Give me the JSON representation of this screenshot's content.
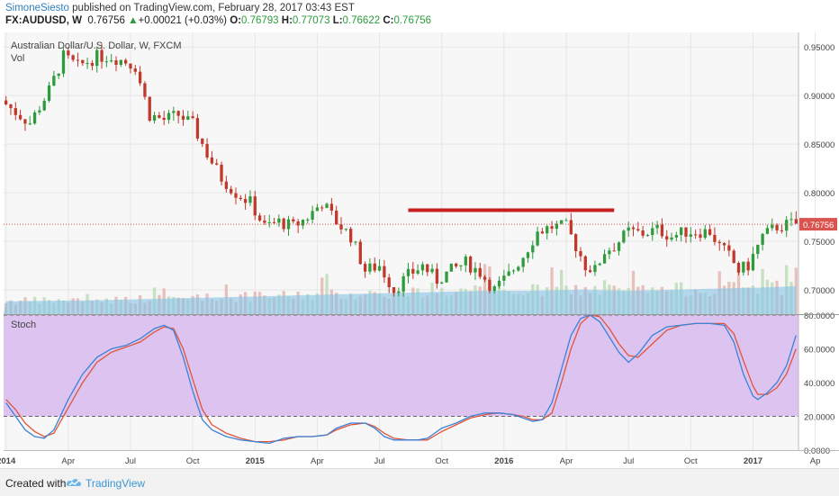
{
  "header": {
    "author": "SimoneSiesto",
    "published": " published on TradingView.com, February 28, 2017 03:43 EST",
    "symbol": "FX:AUDUSD, W",
    "last": "0.76756",
    "change_arrow": "▲",
    "change": "+0.00021 (+0.03%)",
    "o_label": "O:",
    "o_value": "0.76793",
    "h_label": "H:",
    "h_value": "0.77073",
    "l_label": "L:",
    "l_value": "0.76622",
    "c_label": "C:",
    "c_value": "0.76756"
  },
  "footer": {
    "created": "Created with",
    "brand": "TradingView"
  },
  "colors": {
    "up": "#2e9b3c",
    "down": "#c0392b",
    "resistance": "#c71f1f",
    "stoch_k": "#3b82d8",
    "stoch_d": "#e0553a",
    "stoch_bg": "#dcc3f0",
    "vol_up": "#b9d9b4",
    "vol_down": "#e2b3ad",
    "vol_ma": "#86c3e6"
  },
  "chart_data": {
    "type": "candlestick",
    "title": "Australian Dollar/U.S. Dollar, W, FXCM",
    "vol_label": "Vol",
    "stoch_label": "Stoch",
    "ylim": [
      0.675,
      0.965
    ],
    "y_ticks": [
      0.7,
      0.75,
      0.8,
      0.85,
      0.9,
      0.95
    ],
    "y_tick_labels": [
      "0.70000",
      "0.75000",
      "0.80000",
      "0.85000",
      "0.90000",
      "0.95000"
    ],
    "stoch_ylim": [
      0,
      80
    ],
    "stoch_ticks": [
      0,
      20,
      40,
      60,
      80
    ],
    "stoch_tick_labels": [
      "0.0000",
      "20.0000",
      "40.0000",
      "60.0000",
      "80.0000"
    ],
    "stoch_bands": [
      20,
      80
    ],
    "x_labels": [
      "2014",
      "Apr",
      "Jul",
      "Oct",
      "2015",
      "Apr",
      "Jul",
      "Oct",
      "2016",
      "Apr",
      "Jul",
      "Oct",
      "2017",
      "Ap"
    ],
    "x_label_weeks": [
      0,
      13,
      26,
      39,
      52,
      65,
      78,
      91,
      104,
      117,
      130,
      143,
      156,
      169
    ],
    "current_price": 0.76756,
    "current_price_label": "0.76756",
    "resistance_level": 0.782,
    "resistance_weeks": [
      84,
      127
    ],
    "price_path": [
      [
        0,
        0.895
      ],
      [
        3,
        0.883
      ],
      [
        6,
        0.872
      ],
      [
        10,
        0.905
      ],
      [
        13,
        0.94
      ],
      [
        16,
        0.93
      ],
      [
        20,
        0.94
      ],
      [
        23,
        0.94
      ],
      [
        26,
        0.935
      ],
      [
        28,
        0.93
      ],
      [
        31,
        0.88
      ],
      [
        34,
        0.875
      ],
      [
        37,
        0.88
      ],
      [
        40,
        0.87
      ],
      [
        43,
        0.84
      ],
      [
        46,
        0.815
      ],
      [
        49,
        0.8
      ],
      [
        52,
        0.79
      ],
      [
        55,
        0.765
      ],
      [
        58,
        0.77
      ],
      [
        61,
        0.765
      ],
      [
        64,
        0.775
      ],
      [
        67,
        0.79
      ],
      [
        70,
        0.77
      ],
      [
        73,
        0.755
      ],
      [
        76,
        0.72
      ],
      [
        79,
        0.725
      ],
      [
        82,
        0.7
      ],
      [
        85,
        0.715
      ],
      [
        88,
        0.725
      ],
      [
        91,
        0.71
      ],
      [
        94,
        0.72
      ],
      [
        97,
        0.728
      ],
      [
        100,
        0.718
      ],
      [
        103,
        0.7
      ],
      [
        106,
        0.715
      ],
      [
        109,
        0.735
      ],
      [
        112,
        0.76
      ],
      [
        115,
        0.765
      ],
      [
        118,
        0.765
      ],
      [
        120,
        0.745
      ],
      [
        122,
        0.725
      ],
      [
        124,
        0.72
      ],
      [
        126,
        0.74
      ],
      [
        128,
        0.745
      ],
      [
        131,
        0.76
      ],
      [
        134,
        0.758
      ],
      [
        137,
        0.762
      ],
      [
        140,
        0.755
      ],
      [
        143,
        0.76
      ],
      [
        146,
        0.76
      ],
      [
        148,
        0.76
      ],
      [
        150,
        0.745
      ],
      [
        152,
        0.735
      ],
      [
        154,
        0.72
      ],
      [
        156,
        0.725
      ],
      [
        159,
        0.755
      ],
      [
        162,
        0.765
      ],
      [
        165,
        0.768
      ]
    ],
    "volume_path": [
      [
        0,
        0.55
      ],
      [
        20,
        0.6
      ],
      [
        40,
        0.7
      ],
      [
        52,
        0.75
      ],
      [
        60,
        0.8
      ],
      [
        70,
        0.85
      ],
      [
        80,
        0.9
      ],
      [
        90,
        0.95
      ],
      [
        100,
        1.0
      ],
      [
        110,
        1.0
      ],
      [
        120,
        1.05
      ],
      [
        130,
        1.0
      ],
      [
        140,
        1.05
      ],
      [
        150,
        1.1
      ],
      [
        160,
        1.15
      ],
      [
        165,
        1.2
      ]
    ],
    "stoch_k_path": [
      [
        0,
        28
      ],
      [
        2,
        20
      ],
      [
        4,
        12
      ],
      [
        6,
        8
      ],
      [
        8,
        7
      ],
      [
        10,
        12
      ],
      [
        13,
        30
      ],
      [
        16,
        45
      ],
      [
        19,
        55
      ],
      [
        22,
        60
      ],
      [
        25,
        62
      ],
      [
        28,
        66
      ],
      [
        31,
        72
      ],
      [
        33,
        74
      ],
      [
        35,
        71
      ],
      [
        37,
        55
      ],
      [
        39,
        35
      ],
      [
        41,
        18
      ],
      [
        43,
        12
      ],
      [
        46,
        8
      ],
      [
        49,
        6
      ],
      [
        52,
        5
      ],
      [
        55,
        4
      ],
      [
        58,
        7
      ],
      [
        61,
        8
      ],
      [
        64,
        8
      ],
      [
        67,
        9
      ],
      [
        69,
        13
      ],
      [
        72,
        16
      ],
      [
        75,
        16
      ],
      [
        77,
        13
      ],
      [
        79,
        8
      ],
      [
        81,
        6
      ],
      [
        84,
        6
      ],
      [
        86,
        6
      ],
      [
        88,
        7
      ],
      [
        91,
        13
      ],
      [
        94,
        16
      ],
      [
        97,
        20
      ],
      [
        100,
        22
      ],
      [
        103,
        22
      ],
      [
        106,
        21
      ],
      [
        108,
        19
      ],
      [
        110,
        17
      ],
      [
        112,
        18
      ],
      [
        114,
        28
      ],
      [
        116,
        48
      ],
      [
        118,
        68
      ],
      [
        120,
        78
      ],
      [
        122,
        80
      ],
      [
        124,
        76
      ],
      [
        126,
        67
      ],
      [
        128,
        58
      ],
      [
        130,
        52
      ],
      [
        132,
        57
      ],
      [
        135,
        68
      ],
      [
        138,
        73
      ],
      [
        141,
        74
      ],
      [
        144,
        75
      ],
      [
        147,
        75
      ],
      [
        150,
        74
      ],
      [
        152,
        64
      ],
      [
        154,
        45
      ],
      [
        156,
        32
      ],
      [
        157,
        30
      ],
      [
        159,
        34
      ],
      [
        161,
        40
      ],
      [
        163,
        50
      ],
      [
        165,
        68
      ]
    ],
    "stoch_d_path": [
      [
        0,
        30
      ],
      [
        2,
        24
      ],
      [
        4,
        16
      ],
      [
        6,
        11
      ],
      [
        8,
        8
      ],
      [
        10,
        10
      ],
      [
        13,
        25
      ],
      [
        16,
        40
      ],
      [
        19,
        52
      ],
      [
        22,
        58
      ],
      [
        25,
        61
      ],
      [
        28,
        64
      ],
      [
        31,
        70
      ],
      [
        33,
        73
      ],
      [
        35,
        72
      ],
      [
        37,
        60
      ],
      [
        39,
        42
      ],
      [
        41,
        24
      ],
      [
        43,
        15
      ],
      [
        46,
        10
      ],
      [
        49,
        7
      ],
      [
        52,
        5
      ],
      [
        55,
        5
      ],
      [
        58,
        6
      ],
      [
        61,
        8
      ],
      [
        64,
        8
      ],
      [
        67,
        9
      ],
      [
        69,
        12
      ],
      [
        72,
        15
      ],
      [
        75,
        16
      ],
      [
        77,
        14
      ],
      [
        79,
        10
      ],
      [
        81,
        7
      ],
      [
        84,
        6
      ],
      [
        86,
        6
      ],
      [
        88,
        6
      ],
      [
        91,
        11
      ],
      [
        94,
        15
      ],
      [
        97,
        19
      ],
      [
        100,
        21
      ],
      [
        103,
        22
      ],
      [
        106,
        21
      ],
      [
        108,
        20
      ],
      [
        110,
        18
      ],
      [
        112,
        18
      ],
      [
        114,
        22
      ],
      [
        116,
        40
      ],
      [
        118,
        60
      ],
      [
        120,
        75
      ],
      [
        122,
        80
      ],
      [
        124,
        79
      ],
      [
        126,
        72
      ],
      [
        128,
        63
      ],
      [
        130,
        56
      ],
      [
        132,
        55
      ],
      [
        135,
        63
      ],
      [
        138,
        71
      ],
      [
        141,
        74
      ],
      [
        144,
        75
      ],
      [
        147,
        75
      ],
      [
        150,
        75
      ],
      [
        152,
        69
      ],
      [
        154,
        53
      ],
      [
        156,
        38
      ],
      [
        157,
        33
      ],
      [
        159,
        33
      ],
      [
        161,
        37
      ],
      [
        163,
        45
      ],
      [
        165,
        60
      ]
    ]
  }
}
